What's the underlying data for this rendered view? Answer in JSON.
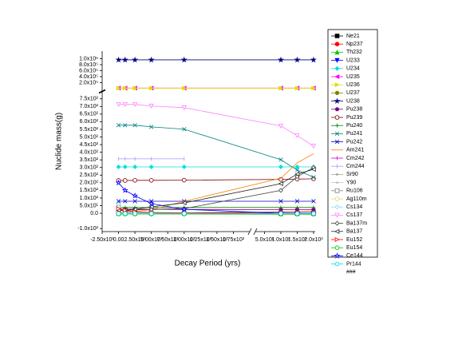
{
  "chart_data": {
    "type": "line",
    "ylabel": "Nuclide mass(g)",
    "xlabel": "Decay Period (yrs)",
    "x": [
      0,
      10,
      25,
      50,
      100,
      1000,
      1500,
      2000
    ],
    "xlim": [
      -25,
      200
    ],
    "xticks": [
      {
        "value": -25,
        "label": "-2.50x10¹"
      },
      {
        "value": 0,
        "label": "0.00"
      },
      {
        "value": 25,
        "label": "2.50x10¹"
      },
      {
        "value": 50,
        "label": "5.00x10¹"
      },
      {
        "value": 75,
        "label": "7.50x10¹"
      },
      {
        "value": 100,
        "label": "1.00x10²"
      },
      {
        "value": 125,
        "label": "1.25x10²"
      },
      {
        "value": 150,
        "label": "1.50x10²"
      },
      {
        "value": 175,
        "label": "1.75x10²"
      }
    ],
    "x2lim": [
      220,
      2050
    ],
    "x2ticks": [
      {
        "value": 500,
        "label": "5.0x10²"
      },
      {
        "value": 1000,
        "label": "1.0x10³"
      },
      {
        "value": 1500,
        "label": "1.5x10³"
      },
      {
        "value": 2000,
        "label": "2.0x10³"
      }
    ],
    "ylim": [
      -120,
      780
    ],
    "yticks": [
      {
        "value": -100,
        "label": "-1.0x10²"
      },
      {
        "value": 0,
        "label": "0.0"
      },
      {
        "value": 50,
        "label": "5.0x10¹"
      },
      {
        "value": 100,
        "label": "1.0x10²"
      },
      {
        "value": 150,
        "label": "1.5x10²"
      },
      {
        "value": 200,
        "label": "2.0x10²"
      },
      {
        "value": 250,
        "label": "2.5x10²"
      },
      {
        "value": 300,
        "label": "3.0x10²"
      },
      {
        "value": 350,
        "label": "3.5x10²"
      },
      {
        "value": 400,
        "label": "4.0x10²"
      },
      {
        "value": 450,
        "label": "4.5x10²"
      },
      {
        "value": 500,
        "label": "5.0x10²"
      },
      {
        "value": 550,
        "label": "5.5x10²"
      },
      {
        "value": 600,
        "label": "6.0x10²"
      },
      {
        "value": 650,
        "label": "6.5x10²"
      },
      {
        "value": 700,
        "label": "7.0x10²"
      },
      {
        "value": 750,
        "label": "7.5x10²"
      }
    ],
    "y2lim": [
      -50000,
      1250000
    ],
    "y2ticks": [
      {
        "value": 200000,
        "label": "2.0x10⁵"
      },
      {
        "value": 400000,
        "label": "4.0x10⁵"
      },
      {
        "value": 600000,
        "label": "6.0x10⁵"
      },
      {
        "value": 800000,
        "label": "8.0x10⁵"
      },
      {
        "value": 1000000,
        "label": "1.0x10⁶"
      }
    ],
    "legend": "right",
    "legend_note": "###",
    "series": [
      {
        "name": "Ne21",
        "color": "#000000",
        "marker": "square",
        "hollow": false,
        "values": [
          0,
          0,
          0,
          0,
          0,
          0,
          0,
          0
        ]
      },
      {
        "name": "Np237",
        "color": "#ff0000",
        "marker": "circle",
        "hollow": false,
        "values": [
          2,
          2,
          2,
          3,
          3,
          8,
          10,
          12
        ]
      },
      {
        "name": "Th232",
        "color": "#00cc00",
        "marker": "triangle-up",
        "hollow": false,
        "values": [
          0,
          0,
          0,
          0,
          0,
          0,
          0,
          0
        ]
      },
      {
        "name": "U233",
        "color": "#0000ff",
        "marker": "triangle-down",
        "hollow": false,
        "values": [
          0,
          0,
          0,
          0,
          0,
          0,
          0,
          0
        ]
      },
      {
        "name": "U234",
        "color": "#00e0e0",
        "marker": "diamond",
        "hollow": false,
        "values": [
          304,
          304,
          304,
          304,
          304,
          304,
          304,
          304
        ]
      },
      {
        "name": "U235",
        "color": "#ff00ff",
        "marker": "triangle-left",
        "hollow": false,
        "axis": "y2",
        "values": [
          22000,
          22000,
          22000,
          22000,
          22000,
          22000,
          22000,
          22000
        ]
      },
      {
        "name": "U236",
        "color": "#e0e000",
        "marker": "triangle-right",
        "hollow": false,
        "axis": "y2",
        "values": [
          18000,
          18000,
          18000,
          18000,
          18000,
          18000,
          18000,
          18000
        ]
      },
      {
        "name": "U237",
        "color": "#808000",
        "marker": "hexagon",
        "hollow": false,
        "values": [
          0,
          0,
          0,
          0,
          0,
          0,
          0,
          0
        ]
      },
      {
        "name": "U238",
        "color": "#000080",
        "marker": "star",
        "hollow": false,
        "axis": "y2",
        "values": [
          960000,
          960000,
          960000,
          960000,
          960000,
          960000,
          960000,
          960000
        ]
      },
      {
        "name": "Pu238",
        "color": "#800080",
        "marker": "pentagon",
        "hollow": false,
        "values": [
          28,
          27,
          27,
          26,
          25,
          24,
          24,
          24
        ]
      },
      {
        "name": "Pu239",
        "color": "#800000",
        "marker": "circle",
        "hollow": true,
        "values": [
          215,
          215,
          216,
          216,
          217,
          222,
          224,
          226
        ]
      },
      {
        "name": "Pu240",
        "color": "#008000",
        "marker": "plus",
        "hollow": false,
        "values": [
          38,
          38,
          38,
          38,
          38,
          38,
          38,
          38
        ]
      },
      {
        "name": "Pu241",
        "color": "#008080",
        "marker": "x",
        "hollow": false,
        "values": [
          577,
          577,
          577,
          566,
          551,
          351,
          283,
          236
        ]
      },
      {
        "name": "Pu242",
        "color": "#0000cc",
        "marker": "x",
        "hollow": false,
        "values": [
          79,
          79,
          79,
          79,
          79,
          79,
          79,
          79
        ]
      },
      {
        "name": "Am241",
        "color": "#ff8000",
        "marker": "none",
        "hollow": false,
        "values": [
          2,
          5,
          12,
          24,
          78,
          230,
          330,
          390
        ]
      },
      {
        "name": "Cm242",
        "color": "#cc00cc",
        "marker": "bar",
        "hollow": false,
        "values": [
          0,
          0,
          0,
          0,
          0,
          0,
          0,
          0
        ]
      },
      {
        "name": "Cm244",
        "color": "#b090ff",
        "marker": "bar",
        "hollow": false,
        "values": [
          357,
          357,
          357,
          357,
          357,
          null,
          null,
          null
        ]
      },
      {
        "name": "Sr90",
        "color": "#a0a0a0",
        "marker": "dot",
        "hollow": false,
        "values": [
          20,
          15,
          10,
          6,
          2,
          0,
          0,
          0
        ]
      },
      {
        "name": "Y90",
        "color": "#c0c0c0",
        "marker": "dot",
        "hollow": false,
        "values": [
          5,
          4,
          3,
          2,
          1,
          0,
          0,
          0
        ]
      },
      {
        "name": "Ru106",
        "color": "#808080",
        "marker": "square",
        "hollow": true,
        "values": [
          40,
          0,
          0,
          0,
          0,
          0,
          0,
          0
        ]
      },
      {
        "name": "Ag110m",
        "color": "#d8d870",
        "marker": "circle",
        "hollow": true,
        "values": [
          10,
          0,
          0,
          0,
          0,
          0,
          0,
          0
        ]
      },
      {
        "name": "Cs134",
        "color": "#80e0e0",
        "marker": "diamond",
        "hollow": true,
        "values": [
          60,
          2,
          0,
          0,
          0,
          0,
          0,
          0
        ]
      },
      {
        "name": "Cs137",
        "color": "#ff80ff",
        "marker": "triangle-down",
        "hollow": true,
        "values": [
          713,
          713,
          713,
          703,
          692,
          572,
          509,
          440
        ]
      },
      {
        "name": "Ba137m",
        "color": "#404040",
        "marker": "diamond",
        "hollow": true,
        "values": [
          20,
          20,
          22,
          25,
          30,
          150,
          240,
          300
        ]
      },
      {
        "name": "Ba137",
        "color": "#202020",
        "marker": "triangle-left",
        "hollow": true,
        "values": [
          21,
          21,
          26,
          42,
          68,
          194,
          257,
          288
        ]
      },
      {
        "name": "Eu152",
        "color": "#ff0000",
        "marker": "triangle-right",
        "hollow": true,
        "values": [
          30,
          20,
          10,
          5,
          1,
          0,
          0,
          0
        ]
      },
      {
        "name": "Eu154",
        "color": "#00c000",
        "marker": "circle",
        "hollow": true,
        "values": [
          -5,
          -5,
          -5,
          -5,
          -5,
          -6,
          -6,
          -6
        ]
      },
      {
        "name": "Ce144",
        "color": "#0000ff",
        "marker": "star",
        "hollow": true,
        "values": [
          200,
          150,
          115,
          63,
          26,
          0,
          0,
          0
        ]
      },
      {
        "name": "Pr144",
        "color": "#00e0e0",
        "marker": "circle",
        "hollow": true,
        "values": [
          -2,
          -2,
          -2,
          -2,
          -2,
          -2,
          -2,
          -2
        ]
      }
    ]
  }
}
